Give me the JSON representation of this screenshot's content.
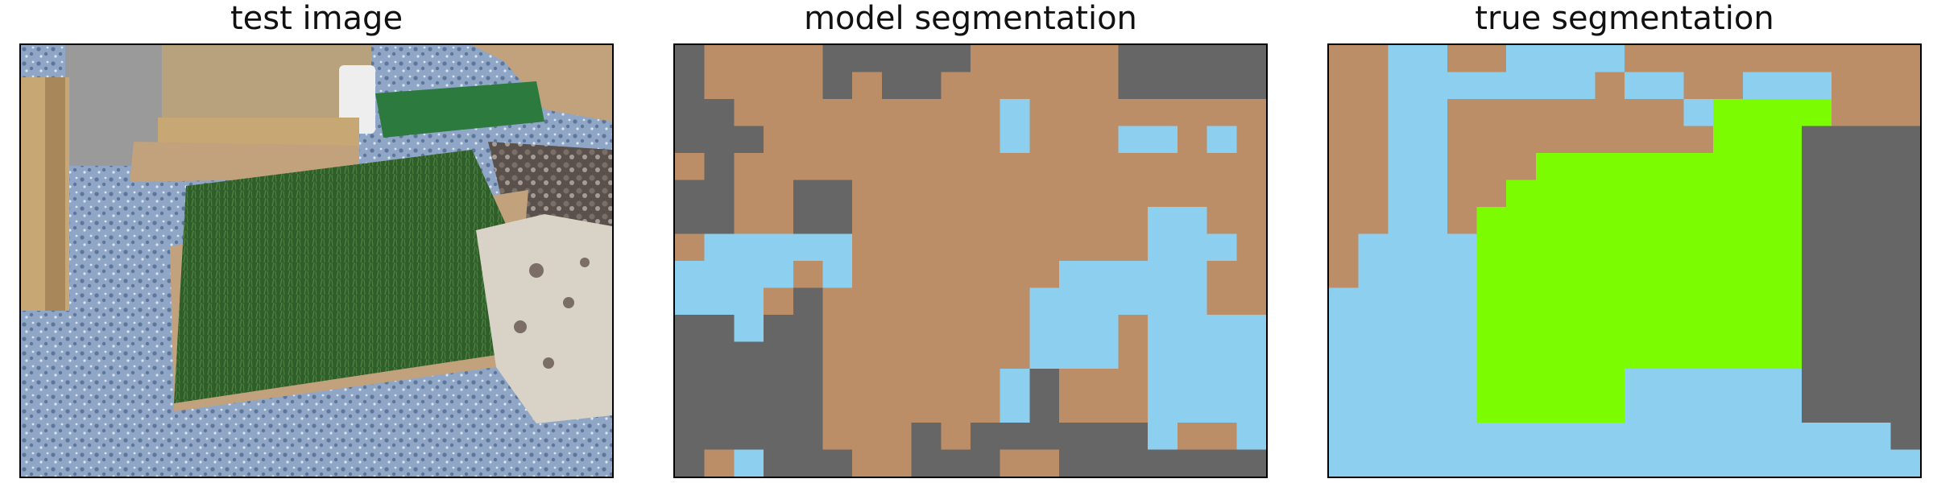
{
  "panels": [
    {
      "id": "test",
      "title": "test image"
    },
    {
      "id": "model",
      "title": "model segmentation"
    },
    {
      "id": "true",
      "title": "true segmentation"
    }
  ],
  "palette": {
    "B": "#bc8e68",
    "D": "#666666",
    "L": "#8ccfef",
    "G": "#7cfc00"
  },
  "model_grid": [
    "DBBBBDDDDDBBBBBDDDDD",
    "DBBBBDBDDBBBBBBDDDDD",
    "DDBBBBBBBBBLBBBBBBBB",
    "DDDBBBBBBBBLBBBLLBLB",
    "BDBBBBBBBBBBBBBBBBBB",
    "DDBBDDBBBBBBBBBBBBBB",
    "DDBBDDBBBBBBBBBBLLBB",
    "BLLLLLBBBBBBBBBBLLLB",
    "LLLLBLBBBBBBBLLLLLBB",
    "LLLBDBBBBBBBLLLLLLBB",
    "DDLDDBBBBBBBLLLBLLLL",
    "DDDDDBBBBBBBLLLBLLLL",
    "DDDDDBBBBBBLDBBBLLLL",
    "DDDDDBBBBBBLDBBBLLLL",
    "DDDDDBBBDBDDDDDDLBBL",
    "DBLDDDBBDDDBBDDDDDDD"
  ],
  "true_grid": [
    "BBLLBBLLLLBBBBBBBBBB",
    "BBLLLLLLLBLLBBLLLBBB",
    "BBLLBBBBBBBBLGGGGBBB",
    "BBLLBBBBBBBBBGGGDDDD",
    "BBLLBBBGGGGGGGGGDDDD",
    "BBLLBBGGGGGGGGGGDDDD",
    "BBLLBGGGGGGGGGGGDDDD",
    "BLLLLGGGGGGGGGGGDDDD",
    "BLLLLGGGGGGGGGGGDDDD",
    "LLLLLGGGGGGGGGGGDDDD",
    "LLLLLGGGGGGGGGGGDDDD",
    "LLLLLGGGGGGGGGGGDDDD",
    "LLLLLGGGGGLLLLLLDDDD",
    "LLLLLGGGGGLLLLLLDDDD",
    "LLLLLLLLLLLLLLLLLLLD",
    "LLLLLLLLLLLLLLLLLLLL"
  ],
  "photo": {
    "floor": "#8fa6c6",
    "floor_dark": "#5e7699",
    "grass": "#2f5e2a",
    "grass_light": "#4b7f3e",
    "wood": "#c7a774",
    "wood_dark": "#8a6a3f",
    "cardboard": "#c1a27c",
    "stone": "#d9d3c7",
    "gravel": "#7a6e66",
    "mat_green": "#2c7a3e",
    "gray_box": "#9a9a9a",
    "white_block": "#eeeeee"
  }
}
